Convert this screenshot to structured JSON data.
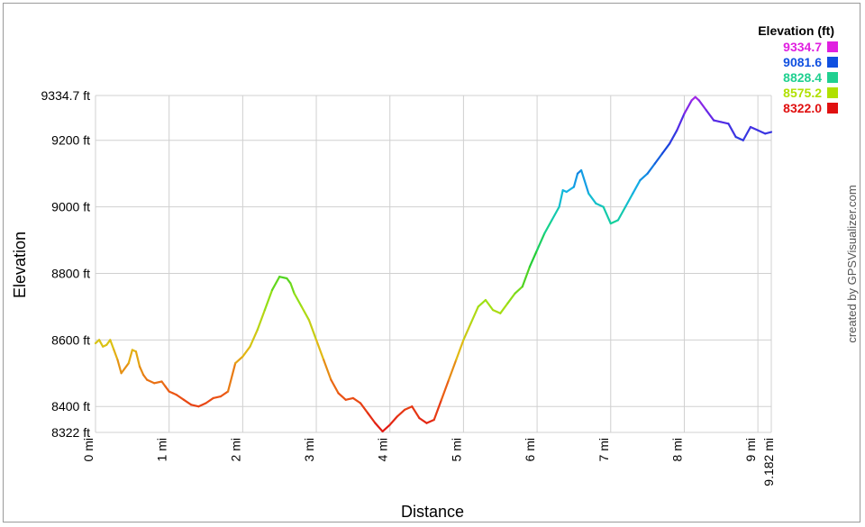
{
  "chart_data": {
    "type": "line",
    "title": "",
    "xlabel": "Distance",
    "ylabel": "Elevation",
    "xlim": [
      0,
      9.182
    ],
    "ylim": [
      8322.0,
      9334.7
    ],
    "grid": true,
    "x_ticks": [
      {
        "value": 0,
        "label": "0 mi"
      },
      {
        "value": 1,
        "label": "1 mi"
      },
      {
        "value": 2,
        "label": "2 mi"
      },
      {
        "value": 3,
        "label": "3 mi"
      },
      {
        "value": 4,
        "label": "4 mi"
      },
      {
        "value": 5,
        "label": "5 mi"
      },
      {
        "value": 6,
        "label": "6 mi"
      },
      {
        "value": 7,
        "label": "7 mi"
      },
      {
        "value": 8,
        "label": "8 mi"
      },
      {
        "value": 9,
        "label": "9 mi"
      },
      {
        "value": 9.182,
        "label": "9.182 mi"
      }
    ],
    "y_ticks": [
      {
        "value": 8322.0,
        "label": "8322 ft"
      },
      {
        "value": 8400,
        "label": "8400 ft"
      },
      {
        "value": 8600,
        "label": "8600 ft"
      },
      {
        "value": 8800,
        "label": "8800 ft"
      },
      {
        "value": 9000,
        "label": "9000 ft"
      },
      {
        "value": 9200,
        "label": "9200 ft"
      },
      {
        "value": 9334.7,
        "label": "9334.7 ft"
      }
    ],
    "legend": {
      "title": "Elevation (ft)",
      "position": "top-right",
      "entries": [
        {
          "label": "9334.7",
          "color": "#e020e0"
        },
        {
          "label": "9081.6",
          "color": "#1050e0"
        },
        {
          "label": "8828.4",
          "color": "#20d090"
        },
        {
          "label": "8575.2",
          "color": "#b0e000"
        },
        {
          "label": "8322.0",
          "color": "#e01010"
        }
      ]
    },
    "series": [
      {
        "x": [
          0,
          0.05,
          0.1,
          0.15,
          0.2,
          0.25,
          0.3,
          0.35,
          0.45,
          0.5,
          0.55,
          0.6,
          0.65,
          0.7,
          0.8,
          0.9,
          0.95,
          1.0,
          1.05,
          1.1,
          1.2,
          1.3,
          1.4,
          1.5,
          1.6,
          1.7,
          1.8,
          1.9,
          2.0,
          2.1,
          2.2,
          2.3,
          2.4,
          2.5,
          2.6,
          2.65,
          2.7,
          2.8,
          2.9,
          3.0,
          3.1,
          3.2,
          3.3,
          3.4,
          3.5,
          3.6,
          3.7,
          3.8,
          3.9,
          4.0,
          4.1,
          4.2,
          4.3,
          4.4,
          4.5,
          4.6,
          4.7,
          4.8,
          4.9,
          5.0,
          5.1,
          5.2,
          5.3,
          5.4,
          5.5,
          5.6,
          5.7,
          5.8,
          5.9,
          6.0,
          6.1,
          6.2,
          6.3,
          6.35,
          6.4,
          6.5,
          6.55,
          6.6,
          6.7,
          6.8,
          6.9,
          7.0,
          7.1,
          7.2,
          7.3,
          7.4,
          7.5,
          7.6,
          7.7,
          7.8,
          7.9,
          8.0,
          8.1,
          8.15,
          8.2,
          8.3,
          8.4,
          8.5,
          8.6,
          8.7,
          8.8,
          8.9,
          9.0,
          9.1,
          9.182
        ],
        "y": [
          8590,
          8600,
          8580,
          8585,
          8600,
          8570,
          8540,
          8500,
          8530,
          8570,
          8565,
          8520,
          8495,
          8480,
          8470,
          8475,
          8460,
          8445,
          8440,
          8435,
          8420,
          8405,
          8400,
          8410,
          8425,
          8430,
          8445,
          8530,
          8550,
          8580,
          8630,
          8690,
          8750,
          8790,
          8785,
          8770,
          8740,
          8700,
          8660,
          8600,
          8540,
          8480,
          8440,
          8420,
          8425,
          8410,
          8380,
          8350,
          8325,
          8345,
          8370,
          8390,
          8400,
          8365,
          8350,
          8360,
          8420,
          8480,
          8540,
          8600,
          8650,
          8700,
          8720,
          8690,
          8680,
          8710,
          8740,
          8760,
          8820,
          8870,
          8920,
          8960,
          9000,
          9050,
          9045,
          9060,
          9100,
          9110,
          9040,
          9010,
          9000,
          8950,
          8960,
          9000,
          9040,
          9080,
          9100,
          9130,
          9160,
          9190,
          9230,
          9280,
          9320,
          9330,
          9320,
          9290,
          9260,
          9255,
          9250,
          9210,
          9200,
          9240,
          9230,
          9220,
          9225
        ]
      }
    ]
  },
  "credit": "created by GPSVisualizer.com"
}
